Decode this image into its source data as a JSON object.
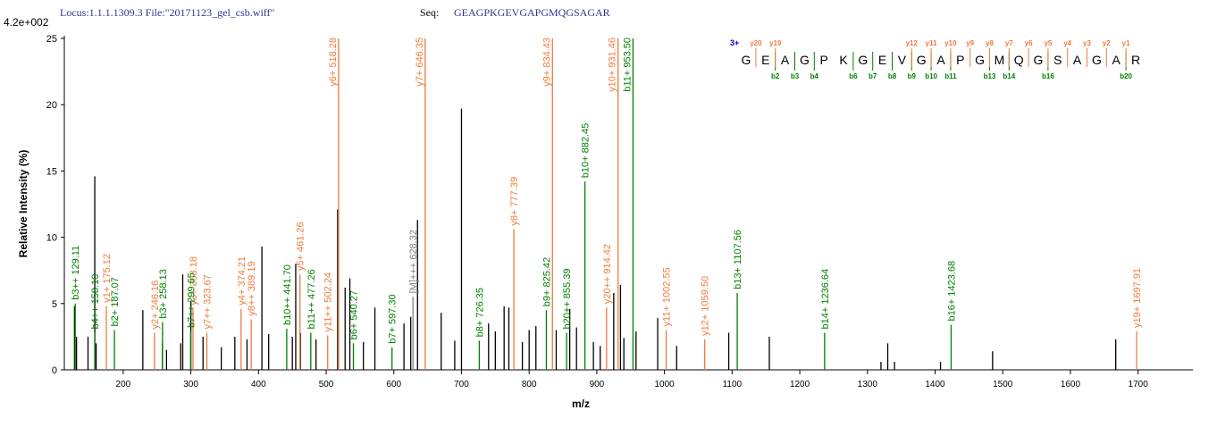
{
  "chart_data": {
    "type": "spectrum",
    "header": {
      "locus_file": "Locus:1.1.1.1309.3 File:\"20171123_gel_csb.wiff\"",
      "seq_label": "Seq:",
      "seq": "GEAGPKGEVGAPGMQGSAGAR"
    },
    "scale_label": "4.2e+002",
    "ylabel": "Relative  Intensity (%)",
    "xlabel": "m/z",
    "xlim": [
      113,
      1781
    ],
    "ylim": [
      0,
      25.2
    ],
    "xticks": [
      200,
      300,
      400,
      500,
      600,
      700,
      800,
      900,
      1000,
      1100,
      1200,
      1300,
      1400,
      1500,
      1600,
      1700
    ],
    "yticks": [
      0,
      5,
      10,
      15,
      20,
      25
    ],
    "grid": false,
    "series": [
      {
        "color": "#000000",
        "x": [
          128,
          131,
          148,
          158,
          160,
          229,
          258,
          264,
          285,
          288,
          300,
          318,
          345,
          365,
          383,
          405,
          415,
          450,
          455,
          462,
          485,
          517,
          528,
          535,
          555,
          572,
          615,
          625,
          635,
          670,
          690,
          700,
          740,
          750,
          763,
          770,
          790,
          800,
          810,
          840,
          860,
          870,
          895,
          905,
          925,
          935,
          940,
          958,
          990,
          1018,
          1095,
          1155,
          1320,
          1330,
          1340,
          1408,
          1485,
          1667
        ],
        "values": [
          4.8,
          2.5,
          2.5,
          14.6,
          2,
          4.5,
          2,
          1.5,
          2,
          7.2,
          5.2,
          2.5,
          1.7,
          2.5,
          2.3,
          9.3,
          2.7,
          2.5,
          8,
          2.8,
          2.3,
          12.1,
          6.2,
          6.9,
          2.1,
          4.7,
          3.5,
          4,
          11.3,
          4.3,
          2.2,
          19.7,
          3.5,
          2.9,
          4.8,
          4.7,
          2.1,
          3,
          3.3,
          3,
          4.6,
          3.2,
          2.1,
          1.8,
          5.8,
          6.4,
          2.4,
          2.9,
          3.9,
          1.8,
          2.8,
          2.5,
          0.6,
          2,
          0.6,
          0.6,
          1.4,
          2.3
        ]
      },
      {
        "color": "#f07a3c",
        "x": [
          175.12,
          246.16,
          303.18,
          323.67,
          374.21,
          389.19,
          461.26,
          502.24,
          518.28,
          646.35,
          777.39,
          834.43,
          914.42,
          931.46,
          1002.55,
          1059.5,
          1697.91
        ],
        "values": [
          4.8,
          2.8,
          4.6,
          2.8,
          4.6,
          3.8,
          7.2,
          2.6,
          25,
          25,
          10.6,
          25,
          4.7,
          25,
          3,
          2.3,
          2.9
        ],
        "labels": [
          "y1+ 175.12",
          "y2+ 246.16",
          "y3+ 303.18",
          "y7++ 323.67",
          "y4+ 374.21",
          "y8++ 389.19",
          "y5+ 461.26",
          "y11++ 502.24",
          "y6+ 518.28",
          "y7+ 646.35",
          "y8+ 777.39",
          "y9+ 834.43",
          "y20++ 914.42",
          "y10+ 931.46",
          "y11+ 1002.55",
          "y12+ 1059.50",
          "y19+ 1697.91"
        ]
      },
      {
        "color": "#008000",
        "x": [
          129.11,
          158.1,
          187.07,
          258.13,
          299.65,
          441.7,
          477.26,
          540.27,
          597.3,
          726.35,
          825.42,
          855.39,
          882.45,
          953.5,
          1107.56,
          1236.64,
          1423.68
        ],
        "values": [
          5,
          2.8,
          3,
          3.6,
          2.9,
          3.1,
          2.8,
          2,
          1.7,
          2.2,
          4.5,
          2.8,
          14.2,
          25,
          5.8,
          2.8,
          3.4
        ],
        "labels": [
          "b3++ 129.11",
          "b4++ 158.10",
          "b2+ 187.07",
          "b3+ 258.13",
          "b7++ 299.65",
          "b10++ 441.70",
          "b11++ 477.26",
          "b6+ 540.27",
          "b7+ 597.30",
          "b8+ 726.35",
          "b9+ 825.42",
          "b20++ 855.39",
          "b10+ 882.45",
          "b11+ 953.50",
          "b13+ 1107.56",
          "b14+ 1236.64",
          "b16+ 1423.68"
        ]
      },
      {
        "color": "#808080",
        "x": [
          628.32
        ],
        "values": [
          5.5
        ],
        "labels": [
          "[M]+++ 628.32"
        ]
      }
    ],
    "sequence": {
      "charge": "3+",
      "residues": [
        "G",
        "E",
        "A",
        "G",
        "P",
        "K",
        "G",
        "E",
        "V",
        "G",
        "A",
        "P",
        "G",
        "M",
        "Q",
        "G",
        "S",
        "A",
        "G",
        "A",
        "R"
      ],
      "y_labels": [
        null,
        "y20",
        "y19",
        null,
        null,
        null,
        null,
        null,
        null,
        "y12",
        "y11",
        "y10",
        "y9",
        "y8",
        "y7",
        "y6",
        "y5",
        "y4",
        "y3",
        "y2",
        "y1"
      ],
      "b_labels": [
        null,
        "b2",
        "b3",
        "b4",
        null,
        "b6",
        "b7",
        "b8",
        "b9",
        "b10",
        "b11",
        null,
        "b13",
        "b14",
        null,
        "b16",
        null,
        null,
        null,
        "b20",
        null
      ]
    }
  }
}
